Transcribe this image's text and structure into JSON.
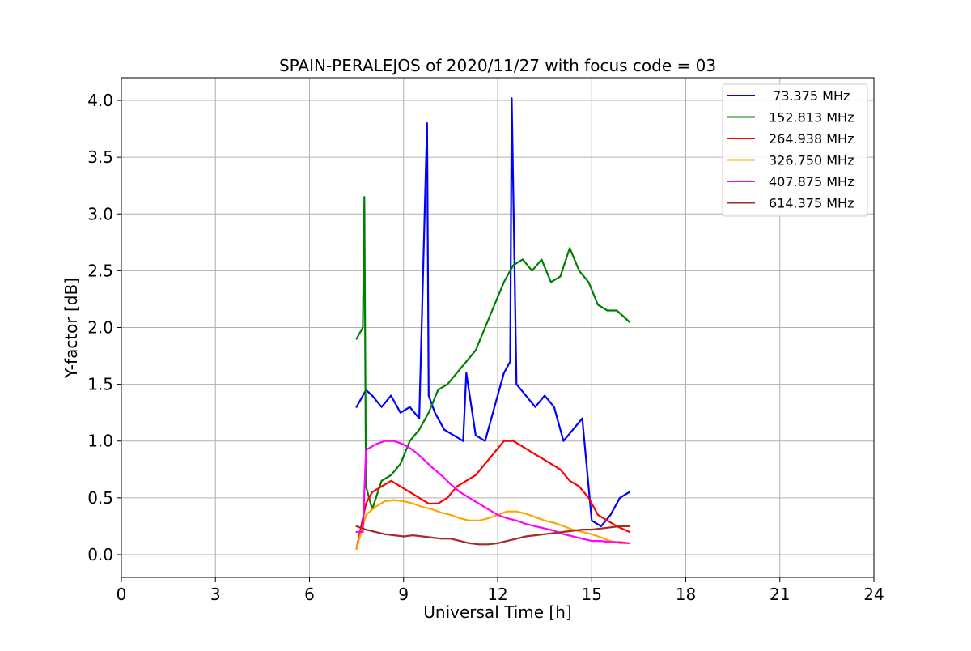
{
  "chart_data": {
    "type": "line",
    "title": "SPAIN-PERALEJOS of 2020/11/27 with focus code = 03",
    "xlabel": "Universal Time [h]",
    "ylabel": "Y-factor [dB]",
    "xlim": [
      0,
      24
    ],
    "ylim": [
      -0.2,
      4.2
    ],
    "xticks": [
      0,
      3,
      6,
      9,
      12,
      15,
      18,
      21,
      24
    ],
    "xtick_labels": [
      "0",
      "3",
      "6",
      "9",
      "12",
      "15",
      "18",
      "21",
      "24"
    ],
    "yticks": [
      0.0,
      0.5,
      1.0,
      1.5,
      2.0,
      2.5,
      3.0,
      3.5,
      4.0
    ],
    "ytick_labels": [
      "0.0",
      "0.5",
      "1.0",
      "1.5",
      "2.0",
      "2.5",
      "3.0",
      "3.5",
      "4.0"
    ],
    "grid": true,
    "legend_position": "top-right",
    "series": [
      {
        "name": " 73.375 MHz",
        "color": "#0000ff",
        "x": [
          7.5,
          7.8,
          8.0,
          8.3,
          8.6,
          8.9,
          9.2,
          9.5,
          9.75,
          9.8,
          10.0,
          10.3,
          10.6,
          10.9,
          11.0,
          11.3,
          11.6,
          11.9,
          12.2,
          12.4,
          12.45,
          12.6,
          12.9,
          13.2,
          13.5,
          13.8,
          14.1,
          14.4,
          14.7,
          15.0,
          15.3,
          15.6,
          15.9,
          16.2
        ],
        "y": [
          1.3,
          1.45,
          1.4,
          1.3,
          1.4,
          1.25,
          1.3,
          1.2,
          3.8,
          1.4,
          1.25,
          1.1,
          1.05,
          1.0,
          1.6,
          1.05,
          1.0,
          1.3,
          1.6,
          1.7,
          4.02,
          1.5,
          1.4,
          1.3,
          1.4,
          1.3,
          1.0,
          1.1,
          1.2,
          0.3,
          0.25,
          0.35,
          0.5,
          0.55
        ]
      },
      {
        "name": "152.813 MHz",
        "color": "#008000",
        "x": [
          7.5,
          7.7,
          7.75,
          7.8,
          8.0,
          8.3,
          8.6,
          8.9,
          9.2,
          9.5,
          9.8,
          10.1,
          10.4,
          10.7,
          11.0,
          11.3,
          11.6,
          11.9,
          12.2,
          12.5,
          12.8,
          13.1,
          13.4,
          13.7,
          14.0,
          14.3,
          14.6,
          14.9,
          15.2,
          15.5,
          15.8,
          16.2
        ],
        "y": [
          1.9,
          2.0,
          3.15,
          0.6,
          0.4,
          0.65,
          0.7,
          0.8,
          1.0,
          1.1,
          1.25,
          1.45,
          1.5,
          1.6,
          1.7,
          1.8,
          2.0,
          2.2,
          2.4,
          2.55,
          2.6,
          2.5,
          2.6,
          2.4,
          2.45,
          2.7,
          2.5,
          2.4,
          2.2,
          2.15,
          2.15,
          2.05
        ]
      },
      {
        "name": "264.938 MHz",
        "color": "#ff0000",
        "x": [
          7.5,
          7.8,
          8.0,
          8.3,
          8.6,
          8.9,
          9.2,
          9.5,
          9.8,
          10.1,
          10.4,
          10.7,
          11.0,
          11.3,
          11.6,
          11.9,
          12.2,
          12.5,
          12.8,
          13.1,
          13.4,
          13.7,
          14.0,
          14.3,
          14.6,
          14.9,
          15.2,
          15.5,
          15.8,
          16.2
        ],
        "y": [
          0.05,
          0.45,
          0.55,
          0.6,
          0.65,
          0.6,
          0.55,
          0.5,
          0.45,
          0.45,
          0.5,
          0.6,
          0.65,
          0.7,
          0.8,
          0.9,
          1.0,
          1.0,
          0.95,
          0.9,
          0.85,
          0.8,
          0.75,
          0.65,
          0.6,
          0.5,
          0.35,
          0.3,
          0.25,
          0.2
        ]
      },
      {
        "name": "326.750 MHz",
        "color": "#ffa500",
        "x": [
          7.5,
          7.8,
          8.1,
          8.4,
          8.7,
          9.0,
          9.3,
          9.6,
          9.9,
          10.2,
          10.5,
          10.8,
          11.1,
          11.4,
          11.7,
          12.0,
          12.3,
          12.6,
          12.9,
          13.2,
          13.5,
          13.8,
          14.1,
          14.4,
          14.7,
          15.0,
          15.3,
          15.6,
          15.9,
          16.2
        ],
        "y": [
          0.05,
          0.35,
          0.42,
          0.47,
          0.48,
          0.47,
          0.45,
          0.42,
          0.4,
          0.37,
          0.35,
          0.32,
          0.3,
          0.3,
          0.32,
          0.35,
          0.38,
          0.38,
          0.36,
          0.33,
          0.3,
          0.28,
          0.25,
          0.22,
          0.2,
          0.18,
          0.15,
          0.12,
          0.1,
          0.1
        ]
      },
      {
        "name": "407.875 MHz",
        "color": "#ff00ff",
        "x": [
          7.5,
          7.7,
          7.8,
          8.1,
          8.4,
          8.7,
          9.0,
          9.3,
          9.6,
          9.9,
          10.2,
          10.5,
          10.8,
          11.1,
          11.4,
          11.7,
          12.0,
          12.3,
          12.6,
          12.9,
          13.2,
          13.5,
          13.8,
          14.1,
          14.4,
          14.7,
          15.0,
          15.3,
          15.6,
          15.9,
          16.2
        ],
        "y": [
          0.2,
          0.2,
          0.92,
          0.97,
          1.0,
          1.0,
          0.97,
          0.92,
          0.85,
          0.77,
          0.7,
          0.62,
          0.55,
          0.5,
          0.45,
          0.4,
          0.35,
          0.32,
          0.3,
          0.27,
          0.25,
          0.23,
          0.21,
          0.18,
          0.16,
          0.14,
          0.12,
          0.12,
          0.11,
          0.11,
          0.1
        ]
      },
      {
        "name": "614.375 MHz",
        "color": "#a52a2a",
        "x": [
          7.5,
          7.8,
          8.1,
          8.4,
          8.7,
          9.0,
          9.3,
          9.6,
          9.9,
          10.2,
          10.5,
          10.8,
          11.1,
          11.4,
          11.7,
          12.0,
          12.3,
          12.6,
          12.9,
          13.2,
          13.5,
          13.8,
          14.1,
          14.4,
          14.7,
          15.0,
          15.3,
          15.6,
          15.9,
          16.2
        ],
        "y": [
          0.25,
          0.22,
          0.2,
          0.18,
          0.17,
          0.16,
          0.17,
          0.16,
          0.15,
          0.14,
          0.14,
          0.12,
          0.1,
          0.09,
          0.09,
          0.1,
          0.12,
          0.14,
          0.16,
          0.17,
          0.18,
          0.19,
          0.2,
          0.21,
          0.22,
          0.22,
          0.23,
          0.24,
          0.25,
          0.25
        ]
      }
    ]
  }
}
